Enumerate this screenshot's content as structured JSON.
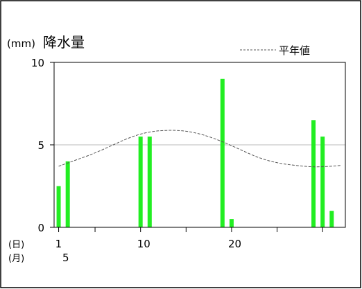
{
  "chart_data": {
    "type": "bar",
    "title": "降水量",
    "unit_label": "(mm)",
    "legend_label": "平年値",
    "ylim": [
      0,
      10
    ],
    "yticks": [
      0,
      5,
      10
    ],
    "xlim": [
      0.5,
      32.5
    ],
    "xtick_labels": [
      {
        "day": 1,
        "label": "1"
      },
      {
        "day": 10,
        "label": "10"
      },
      {
        "day": 20,
        "label": "20"
      }
    ],
    "xtick_minor_days": [
      5,
      15,
      25,
      30
    ],
    "day_row_label": "(日)",
    "month_row_label": "(月)",
    "month_value": "5",
    "bar_color": "#22ee22",
    "series": [
      {
        "values": [
          {
            "day": 1,
            "value": 2.5
          },
          {
            "day": 2,
            "value": 4.0
          },
          {
            "day": 10,
            "value": 5.5
          },
          {
            "day": 11,
            "value": 5.5
          },
          {
            "day": 19,
            "value": 9.0
          },
          {
            "day": 20,
            "value": 0.5
          },
          {
            "day": 29,
            "value": 6.5
          },
          {
            "day": 30,
            "value": 5.5
          },
          {
            "day": 31,
            "value": 1.0
          }
        ]
      }
    ],
    "normal": {
      "name": "平年値",
      "style": "dashed",
      "values": [
        {
          "day": 1,
          "value": 3.7
        },
        {
          "day": 3,
          "value": 4.1
        },
        {
          "day": 5,
          "value": 4.5
        },
        {
          "day": 7,
          "value": 5.0
        },
        {
          "day": 9,
          "value": 5.5
        },
        {
          "day": 11,
          "value": 5.8
        },
        {
          "day": 13,
          "value": 5.9
        },
        {
          "day": 15,
          "value": 5.85
        },
        {
          "day": 17,
          "value": 5.6
        },
        {
          "day": 19,
          "value": 5.2
        },
        {
          "day": 21,
          "value": 4.7
        },
        {
          "day": 23,
          "value": 4.2
        },
        {
          "day": 25,
          "value": 3.9
        },
        {
          "day": 27,
          "value": 3.75
        },
        {
          "day": 29,
          "value": 3.65
        },
        {
          "day": 31,
          "value": 3.7
        },
        {
          "day": 32,
          "value": 3.75
        }
      ]
    },
    "gridlines": [
      5
    ]
  }
}
